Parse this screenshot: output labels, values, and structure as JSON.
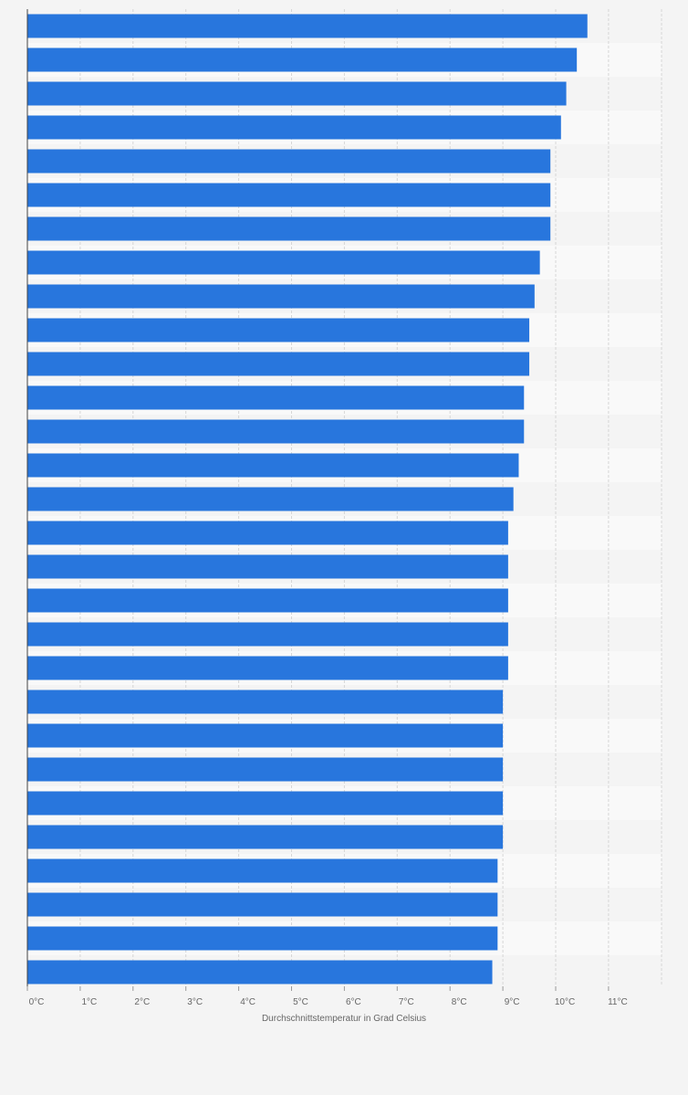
{
  "colors": {
    "bar": "#2876dd",
    "band_light": "#f4f4f4",
    "band_dark": "#f9f9f9",
    "grid": "#d6d6d6",
    "axis": "#444444",
    "text": "#666666"
  },
  "chart_data": {
    "type": "bar",
    "orientation": "horizontal",
    "xlabel": "Durchschnittstemperatur in Grad Celsius",
    "ylabel": "",
    "xlim": [
      0,
      12
    ],
    "tick_values": [
      0,
      1,
      2,
      3,
      4,
      5,
      6,
      7,
      8,
      9,
      10,
      11
    ],
    "tick_labels": [
      "0°C",
      "1°C",
      "2°C",
      "3°C",
      "4°C",
      "5°C",
      "6°C",
      "7°C",
      "8°C",
      "9°C",
      "10°C",
      "11°C"
    ],
    "grid": true,
    "values": [
      10.6,
      10.4,
      10.2,
      10.1,
      9.9,
      9.9,
      9.9,
      9.7,
      9.6,
      9.5,
      9.5,
      9.4,
      9.4,
      9.3,
      9.2,
      9.1,
      9.1,
      9.1,
      9.1,
      9.1,
      9.0,
      9.0,
      9.0,
      9.0,
      9.0,
      8.9,
      8.9,
      8.9,
      8.8
    ]
  }
}
